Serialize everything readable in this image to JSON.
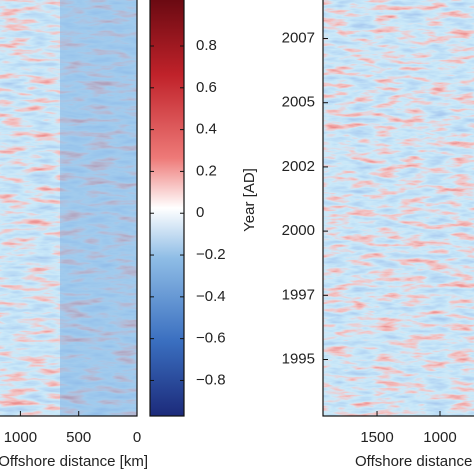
{
  "chart_data": [
    {
      "type": "heatmap",
      "xlabel": "Offshore distance [km]",
      "xlim": [
        1175,
        0
      ],
      "xticks": [
        1000,
        500,
        0
      ]
    },
    {
      "type": "colorbar",
      "ylim": [
        -0.97,
        1.02
      ],
      "yticks": [
        0.8,
        0.6,
        0.4,
        0.2,
        0,
        {
          "value": -0.2,
          "label": "−0.2"
        },
        {
          "value": -0.4,
          "label": "−0.4"
        },
        {
          "value": -0.6,
          "label": "−0.6"
        },
        {
          "value": -0.8,
          "label": "−0.8"
        }
      ]
    },
    {
      "type": "heatmap",
      "xlabel": "Offshore distance [km]",
      "ylabel": "Year [AD]",
      "xlim": [
        1929,
        730
      ],
      "xticks": [
        1500,
        1000
      ],
      "ylim": [
        1992.8,
        2009
      ],
      "yticks": [
        {
          "value": 1995,
          "label": "1995"
        },
        {
          "value": 1997.5,
          "label": "1997"
        },
        {
          "value": 2000,
          "label": "2000"
        },
        {
          "value": 2002.5,
          "label": "2002"
        },
        {
          "value": 2005,
          "label": "2005"
        },
        {
          "value": 2007.5,
          "label": "2007"
        }
      ]
    }
  ]
}
